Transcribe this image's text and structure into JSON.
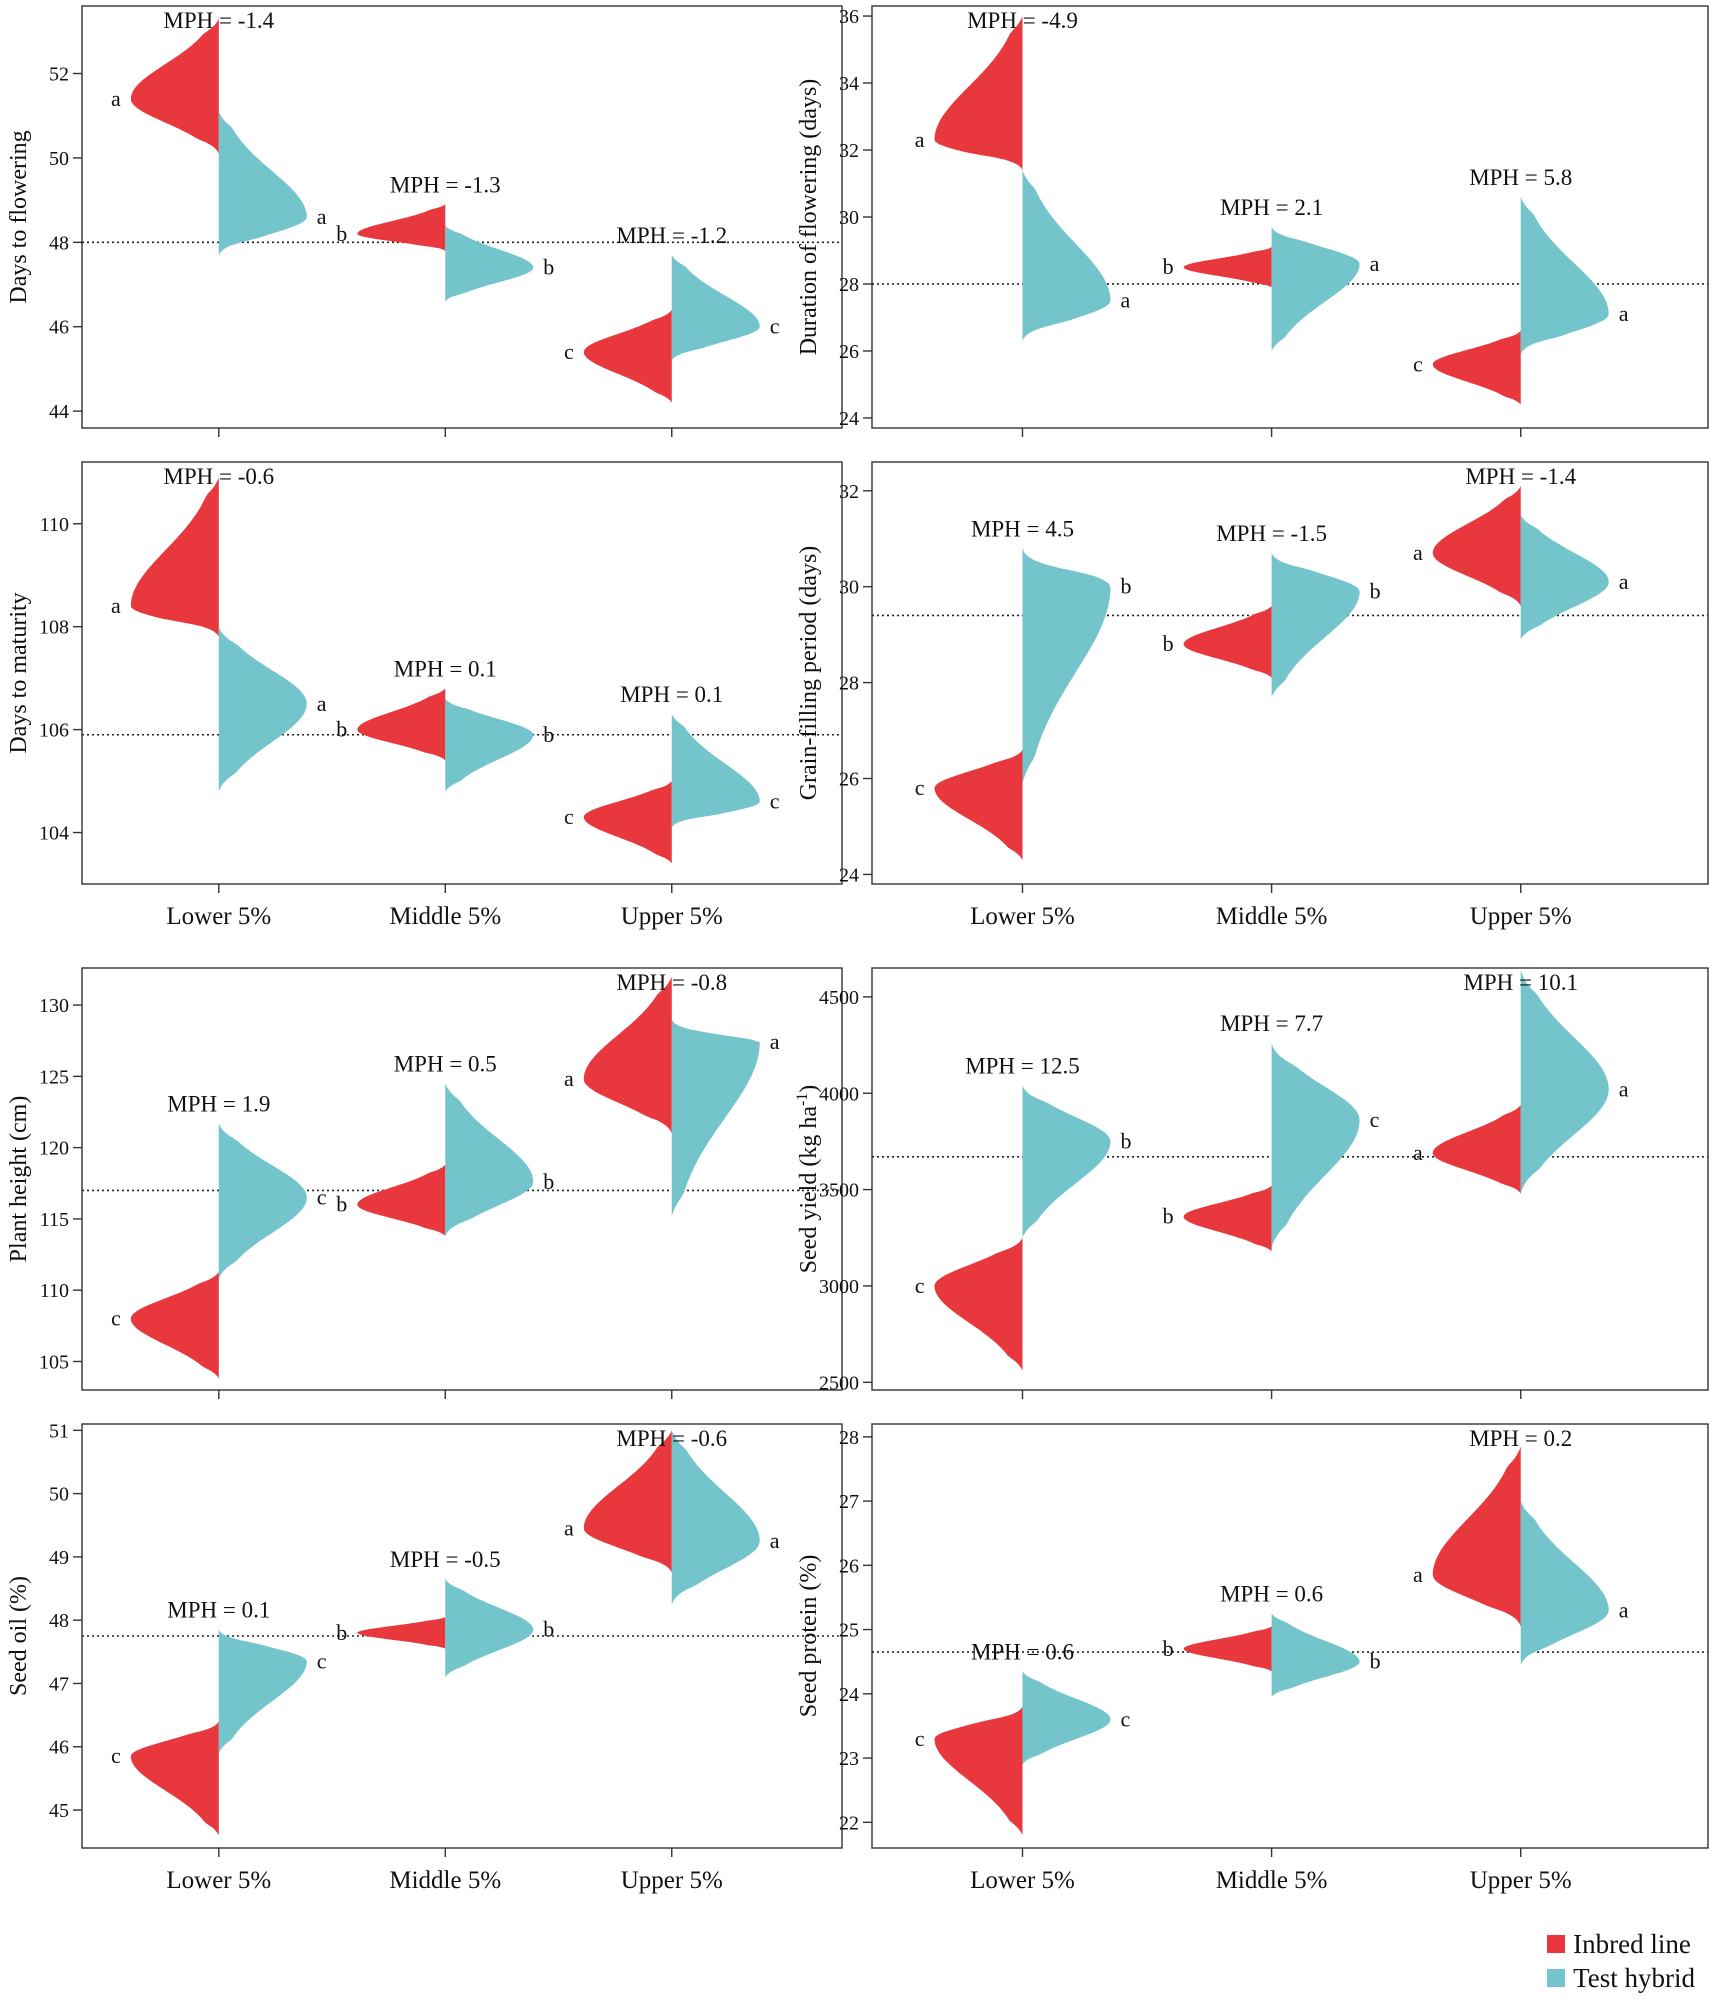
{
  "legend": {
    "inbred_label": "Inbred line",
    "hybrid_label": "Test hybrid",
    "inbred_color": "#e8383d",
    "hybrid_color": "#74c4cb"
  },
  "chart_data": [
    {
      "type": "split-violin",
      "ylabel": "Days to flowering",
      "ylim": [
        43.6,
        53.6
      ],
      "yticks": [
        44,
        46,
        48,
        50,
        52
      ],
      "reference_line": 48.0,
      "categories": [
        "Lower 5%",
        "Middle 5%",
        "Upper 5%"
      ],
      "mph": [
        "MPH = -1.4",
        "MPH = -1.3",
        "MPH = -1.2"
      ],
      "inbred": {
        "name": "Inbred line",
        "modes": [
          51.4,
          48.2,
          45.4
        ],
        "ranges": [
          [
            50.1,
            53.3
          ],
          [
            47.8,
            48.9
          ],
          [
            44.2,
            46.4
          ]
        ],
        "letters": [
          "a",
          "b",
          "c"
        ]
      },
      "hybrid": {
        "name": "Test hybrid",
        "modes": [
          48.6,
          47.4,
          46.0
        ],
        "ranges": [
          [
            47.7,
            51.1
          ],
          [
            46.6,
            48.4
          ],
          [
            45.2,
            47.7
          ]
        ],
        "letters": [
          "a",
          "b",
          "c"
        ]
      }
    },
    {
      "type": "split-violin",
      "ylabel": "Duration of flowering (days)",
      "ylim": [
        23.7,
        36.3
      ],
      "yticks": [
        24,
        26,
        28,
        30,
        32,
        34,
        36
      ],
      "reference_line": 28.0,
      "categories": [
        "Lower 5%",
        "Middle 5%",
        "Upper 5%"
      ],
      "mph": [
        "MPH = -4.9",
        "MPH = 2.1",
        "MPH = 5.8"
      ],
      "inbred": {
        "name": "Inbred line",
        "modes": [
          32.3,
          28.5,
          25.6
        ],
        "ranges": [
          [
            31.4,
            36.0
          ],
          [
            27.9,
            29.1
          ],
          [
            24.4,
            26.6
          ]
        ],
        "letters": [
          "a",
          "b",
          "c"
        ]
      },
      "hybrid": {
        "name": "Test hybrid",
        "modes": [
          27.5,
          28.6,
          27.1
        ],
        "ranges": [
          [
            26.3,
            31.4
          ],
          [
            26.0,
            29.7
          ],
          [
            25.9,
            30.6
          ]
        ],
        "letters": [
          "a",
          "a",
          "a"
        ]
      }
    },
    {
      "type": "split-violin",
      "ylabel": "Days to maturity",
      "ylim": [
        103.0,
        111.2
      ],
      "yticks": [
        104,
        106,
        108,
        110
      ],
      "reference_line": 105.9,
      "categories": [
        "Lower 5%",
        "Middle 5%",
        "Upper 5%"
      ],
      "mph": [
        "MPH = -0.6",
        "MPH = 0.1",
        "MPH = 0.1"
      ],
      "inbred": {
        "name": "Inbred line",
        "modes": [
          108.4,
          106.0,
          104.3
        ],
        "ranges": [
          [
            107.8,
            110.9
          ],
          [
            105.4,
            106.8
          ],
          [
            103.4,
            105.0
          ]
        ],
        "letters": [
          "a",
          "b",
          "c"
        ]
      },
      "hybrid": {
        "name": "Test hybrid",
        "modes": [
          106.5,
          105.9,
          104.6
        ],
        "ranges": [
          [
            104.8,
            108.0
          ],
          [
            104.8,
            106.6
          ],
          [
            104.1,
            106.3
          ]
        ],
        "letters": [
          "a",
          "b",
          "c"
        ]
      }
    },
    {
      "type": "split-violin",
      "ylabel": "Grain-filling period (days)",
      "ylim": [
        23.8,
        32.6
      ],
      "yticks": [
        24,
        26,
        28,
        30,
        32
      ],
      "reference_line": 29.4,
      "categories": [
        "Lower 5%",
        "Middle 5%",
        "Upper 5%"
      ],
      "mph": [
        "MPH = 4.5",
        "MPH = -1.5",
        "MPH = -1.4"
      ],
      "inbred": {
        "name": "Inbred line",
        "modes": [
          25.8,
          28.8,
          30.7
        ],
        "ranges": [
          [
            24.3,
            26.6
          ],
          [
            28.1,
            29.6
          ],
          [
            29.6,
            32.1
          ]
        ],
        "letters": [
          "c",
          "b",
          "a"
        ]
      },
      "hybrid": {
        "name": "Test hybrid",
        "modes": [
          30.0,
          29.9,
          30.1
        ],
        "ranges": [
          [
            25.9,
            30.8
          ],
          [
            27.7,
            30.7
          ],
          [
            28.9,
            31.5
          ]
        ],
        "letters": [
          "b",
          "b",
          "a"
        ]
      }
    },
    {
      "type": "split-violin",
      "ylabel": "Plant height (cm)",
      "ylim": [
        103.0,
        132.6
      ],
      "yticks": [
        105,
        110,
        115,
        120,
        125,
        130
      ],
      "reference_line": 117.0,
      "categories": [
        "Lower 5%",
        "Middle 5%",
        "Upper 5%"
      ],
      "mph": [
        "MPH = 1.9",
        "MPH = 0.5",
        "MPH = -0.8"
      ],
      "inbred": {
        "name": "Inbred line",
        "modes": [
          108.0,
          116.0,
          124.8
        ],
        "ranges": [
          [
            103.8,
            111.3
          ],
          [
            113.8,
            118.8
          ],
          [
            121.0,
            132.0
          ]
        ],
        "letters": [
          "c",
          "b",
          "a"
        ]
      },
      "hybrid": {
        "name": "Test hybrid",
        "modes": [
          116.5,
          117.6,
          127.4
        ],
        "ranges": [
          [
            110.8,
            121.7
          ],
          [
            113.8,
            124.5
          ],
          [
            115.2,
            129.0
          ]
        ],
        "letters": [
          "c",
          "b",
          "a"
        ]
      }
    },
    {
      "type": "split-violin",
      "ylabel": "Seed yield (kg ha-1)",
      "ylim": [
        2460,
        4650
      ],
      "yticks": [
        2500,
        3000,
        3500,
        4000,
        4500
      ],
      "reference_line": 3670,
      "categories": [
        "Lower 5%",
        "Middle 5%",
        "Upper 5%"
      ],
      "mph": [
        "MPH = 12.5",
        "MPH = 7.7",
        "MPH = 10.1"
      ],
      "inbred": {
        "name": "Inbred line",
        "modes": [
          3000,
          3360,
          3690
        ],
        "ranges": [
          [
            2560,
            3250
          ],
          [
            3180,
            3520
          ],
          [
            3480,
            3940
          ]
        ],
        "letters": [
          "c",
          "b",
          "a"
        ]
      },
      "hybrid": {
        "name": "Test hybrid",
        "modes": [
          3750,
          3860,
          4020
        ],
        "ranges": [
          [
            3250,
            4040
          ],
          [
            3200,
            4260
          ],
          [
            3480,
            4640
          ]
        ],
        "letters": [
          "b",
          "c",
          "a"
        ]
      }
    },
    {
      "type": "split-violin",
      "ylabel": "Seed oil (%)",
      "ylim": [
        44.4,
        51.1
      ],
      "yticks": [
        45,
        46,
        47,
        48,
        49,
        50,
        51
      ],
      "reference_line": 47.75,
      "categories": [
        "Lower 5%",
        "Middle 5%",
        "Upper 5%"
      ],
      "mph": [
        "MPH = 0.1",
        "MPH = -0.5",
        "MPH = -0.6"
      ],
      "inbred": {
        "name": "Inbred line",
        "modes": [
          45.85,
          47.8,
          49.45
        ],
        "ranges": [
          [
            44.6,
            46.4
          ],
          [
            47.55,
            48.05
          ],
          [
            48.75,
            51.0
          ]
        ],
        "letters": [
          "c",
          "b",
          "a"
        ]
      },
      "hybrid": {
        "name": "Test hybrid",
        "modes": [
          47.35,
          47.85,
          49.25
        ],
        "ranges": [
          [
            45.9,
            47.85
          ],
          [
            47.1,
            48.65
          ],
          [
            48.25,
            51.0
          ]
        ],
        "letters": [
          "c",
          "b",
          "a"
        ]
      }
    },
    {
      "type": "split-violin",
      "ylabel": "Seed protein (%)",
      "ylim": [
        21.6,
        28.2
      ],
      "yticks": [
        22,
        23,
        24,
        25,
        26,
        27,
        28
      ],
      "reference_line": 24.65,
      "categories": [
        "Lower 5%",
        "Middle 5%",
        "Upper 5%"
      ],
      "mph": [
        "MPH = 0.6",
        "MPH = 0.6",
        "MPH = 0.2"
      ],
      "inbred": {
        "name": "Inbred line",
        "modes": [
          23.3,
          24.7,
          25.85
        ],
        "ranges": [
          [
            21.8,
            23.8
          ],
          [
            24.35,
            25.05
          ],
          [
            25.05,
            27.85
          ]
        ],
        "letters": [
          "c",
          "b",
          "a"
        ]
      },
      "hybrid": {
        "name": "Test hybrid",
        "modes": [
          23.6,
          24.5,
          25.3
        ],
        "ranges": [
          [
            22.9,
            24.35
          ],
          [
            23.95,
            25.25
          ],
          [
            24.45,
            27.0
          ]
        ],
        "letters": [
          "c",
          "b",
          "a"
        ]
      }
    }
  ]
}
